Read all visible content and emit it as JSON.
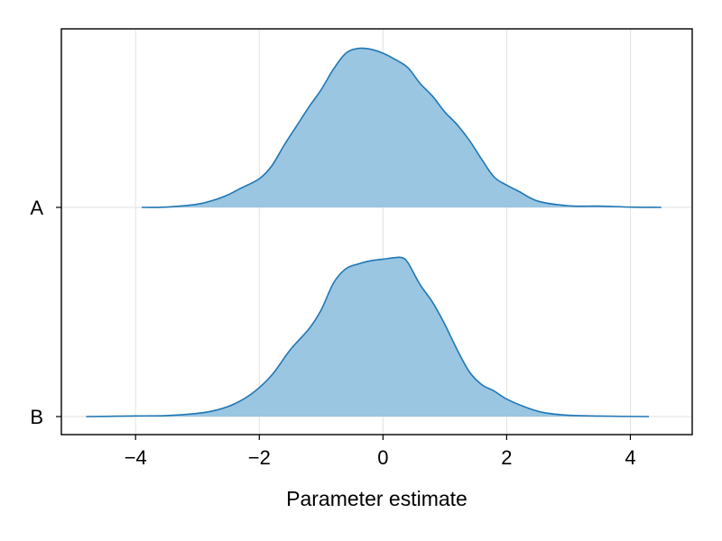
{
  "chart_data": {
    "type": "area",
    "title": "",
    "xlabel": "Parameter estimate",
    "ylabel": "",
    "xlim": [
      -5.2,
      5.0
    ],
    "x_ticks": [
      -4,
      -2,
      0,
      2,
      4
    ],
    "x_tick_labels": [
      "−4",
      "−2",
      "0",
      "2",
      "4"
    ],
    "categories": [
      "A",
      "B"
    ],
    "grid": true,
    "legend": "none",
    "density_max_fraction_of_row_gap": 0.76,
    "colors": {
      "fill": "#9ac6e2",
      "line": "#1f77b4",
      "grid": "#e2e2e2",
      "frame": "#000000"
    },
    "series": [
      {
        "category": "A",
        "x": [
          -3.9,
          -3.5,
          -3.0,
          -2.7,
          -2.5,
          -2.3,
          -2.0,
          -1.8,
          -1.6,
          -1.4,
          -1.2,
          -1.0,
          -0.8,
          -0.6,
          -0.4,
          -0.2,
          0.0,
          0.2,
          0.4,
          0.6,
          0.8,
          1.0,
          1.2,
          1.4,
          1.6,
          1.8,
          2.0,
          2.2,
          2.5,
          3.0,
          3.5,
          4.0,
          4.5
        ],
        "density": [
          0.0,
          0.002,
          0.02,
          0.05,
          0.08,
          0.12,
          0.18,
          0.26,
          0.39,
          0.51,
          0.63,
          0.74,
          0.87,
          0.97,
          1.0,
          0.995,
          0.97,
          0.93,
          0.88,
          0.78,
          0.7,
          0.6,
          0.52,
          0.42,
          0.3,
          0.19,
          0.14,
          0.1,
          0.04,
          0.01,
          0.008,
          0.002,
          0.0
        ]
      },
      {
        "category": "B",
        "x": [
          -4.8,
          -4.4,
          -4.0,
          -3.5,
          -3.0,
          -2.7,
          -2.4,
          -2.1,
          -1.8,
          -1.5,
          -1.2,
          -1.0,
          -0.8,
          -0.6,
          -0.4,
          -0.2,
          0.0,
          0.2,
          0.3,
          0.4,
          0.6,
          0.8,
          1.0,
          1.2,
          1.4,
          1.6,
          1.8,
          2.0,
          2.3,
          2.6,
          3.0,
          3.5,
          4.3
        ],
        "density": [
          0.0,
          0.002,
          0.004,
          0.006,
          0.02,
          0.04,
          0.08,
          0.15,
          0.26,
          0.42,
          0.55,
          0.67,
          0.84,
          0.93,
          0.96,
          0.98,
          0.99,
          1.0,
          1.0,
          0.97,
          0.83,
          0.72,
          0.58,
          0.42,
          0.28,
          0.2,
          0.16,
          0.11,
          0.06,
          0.025,
          0.008,
          0.003,
          0.0
        ]
      }
    ]
  }
}
